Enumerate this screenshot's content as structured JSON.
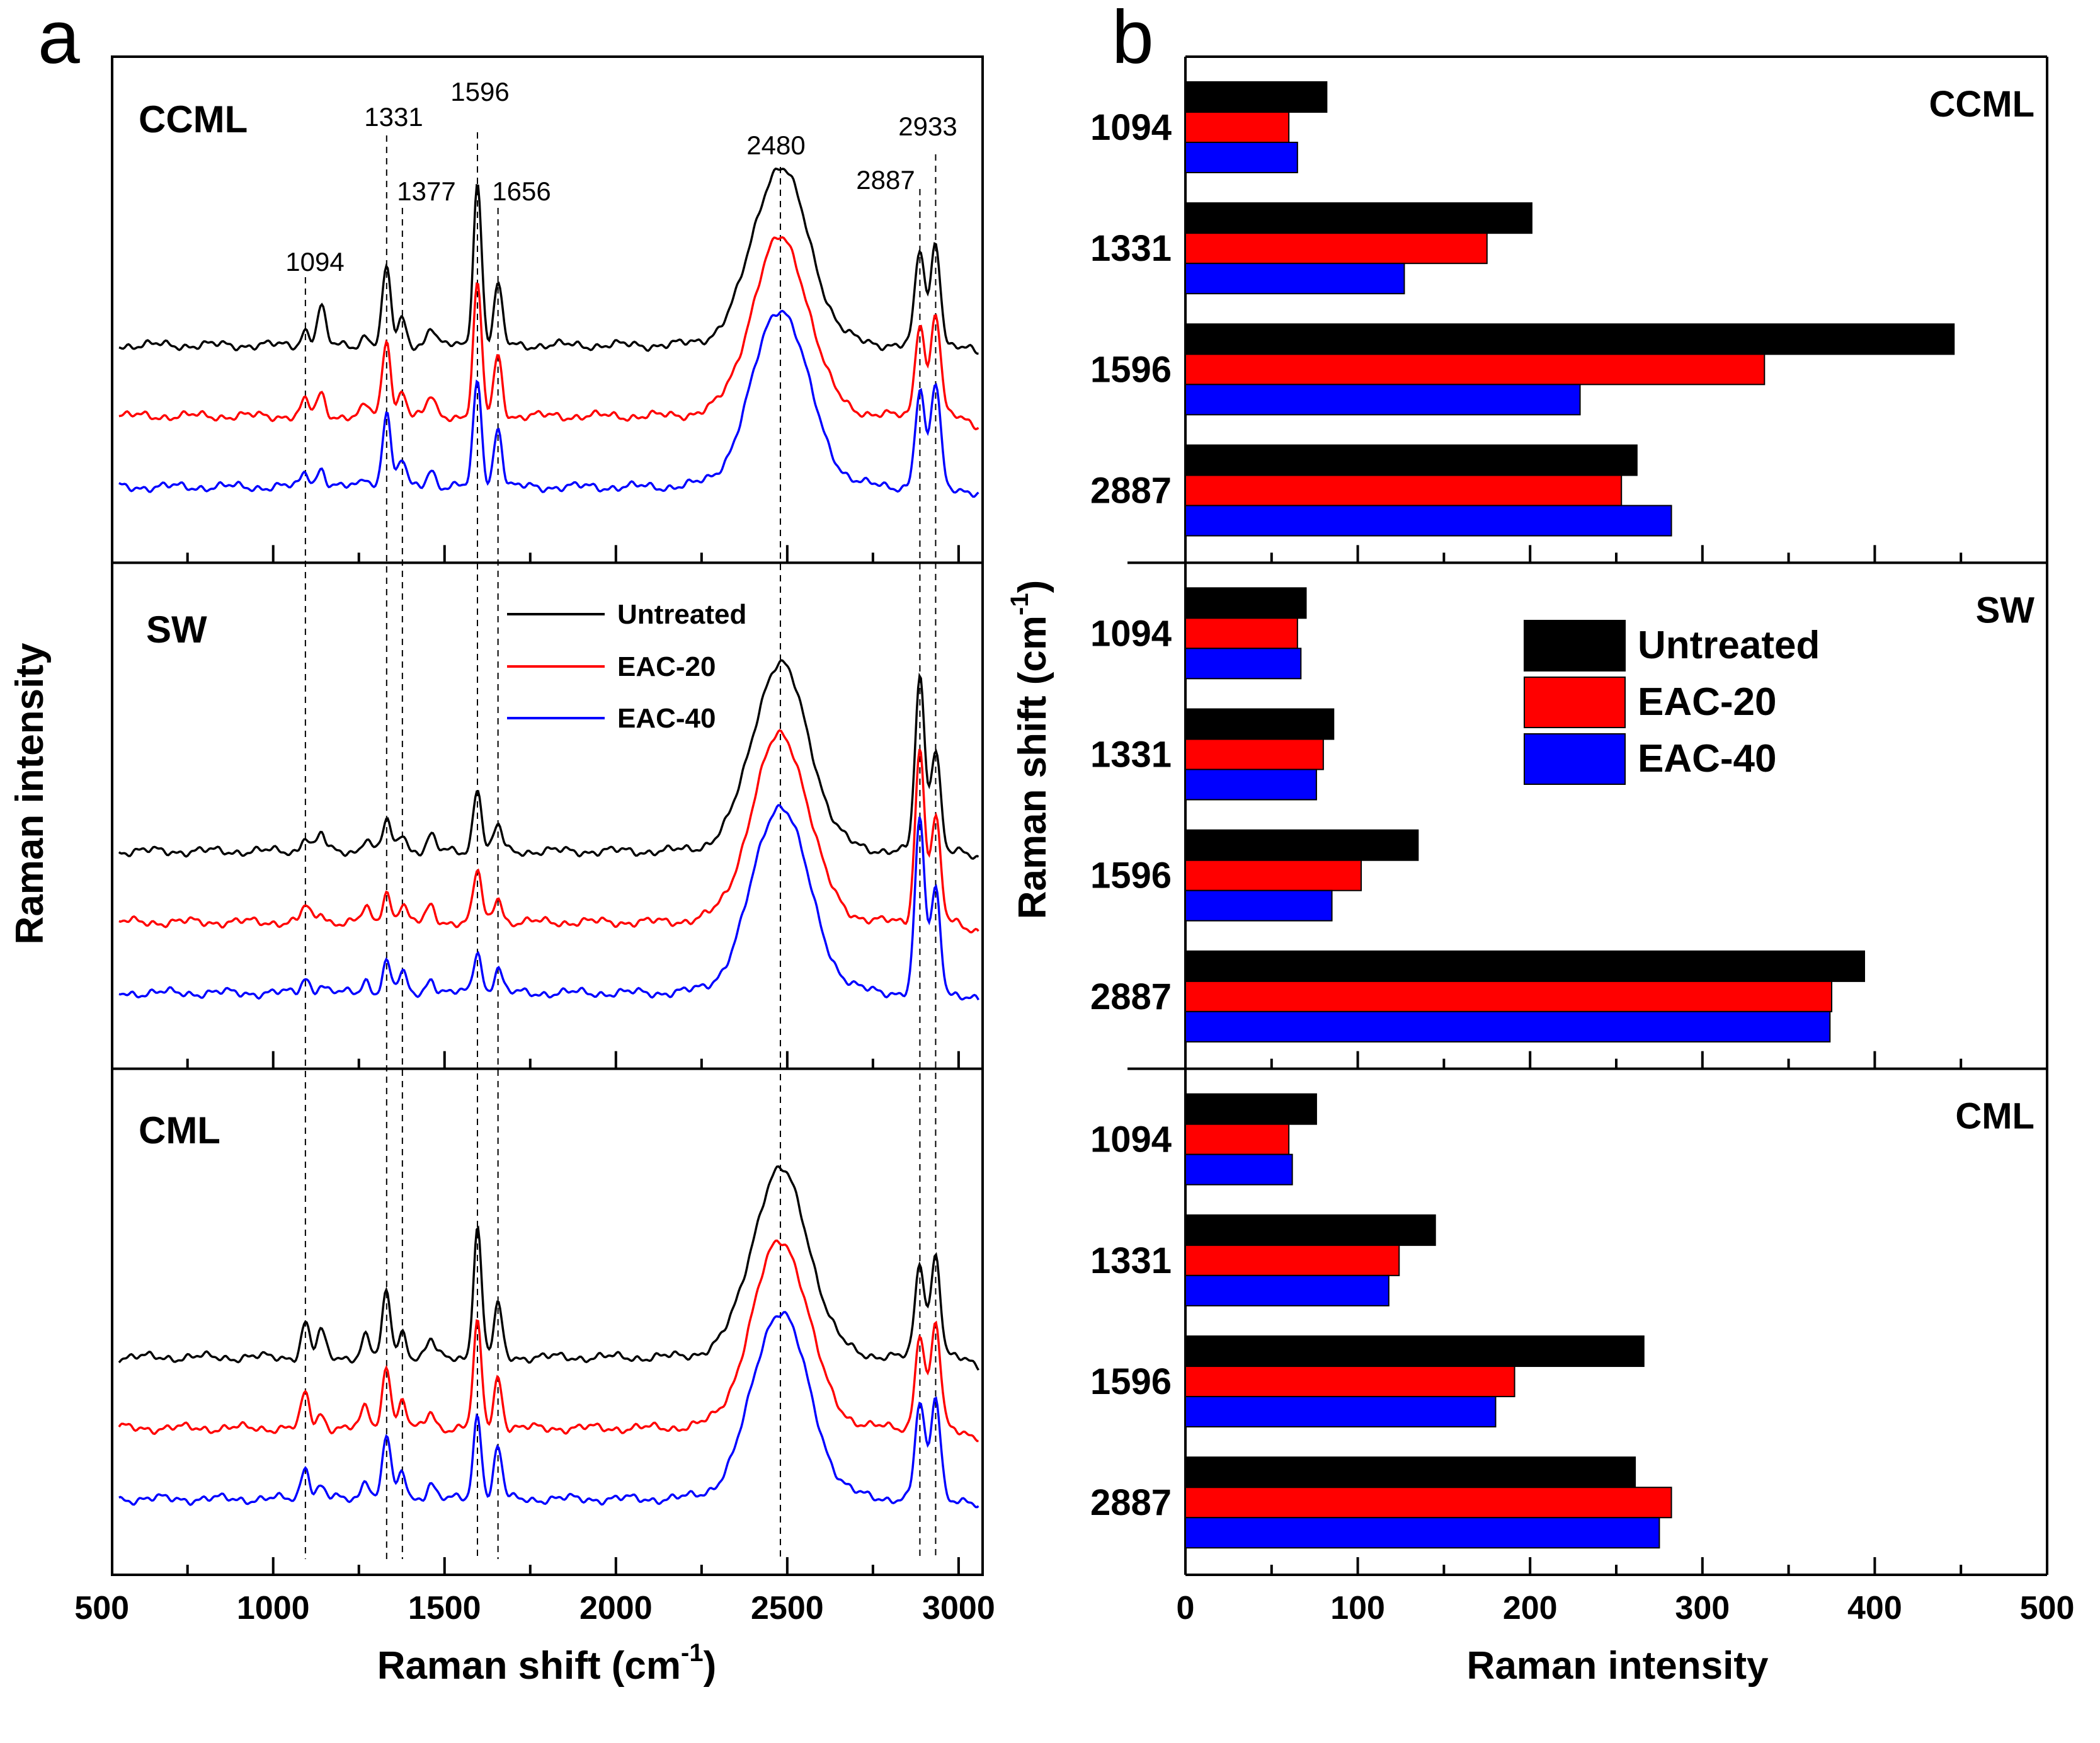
{
  "panel_a": {
    "label": "a",
    "xlabel": "Raman shift (cm-1)",
    "xlabel_main": "Raman shift (cm",
    "xlabel_sup": "-1",
    "xlabel_close": ")",
    "ylabel": "Raman intensity",
    "xlim": [
      530,
      3070
    ],
    "xticks": [
      500,
      1000,
      1500,
      2000,
      2500,
      3000
    ],
    "xtick_labels": [
      "500",
      "1000",
      "1500",
      "2000",
      "2500",
      "3000"
    ],
    "peak_lines": [
      1094,
      1331,
      1377,
      1596,
      1656,
      2480,
      2887,
      2933
    ],
    "peak_labels": [
      "1094",
      "1331",
      "1377",
      "1596",
      "1656",
      "2480",
      "2887",
      "2933"
    ],
    "subplots": [
      "CCML",
      "SW",
      "CML"
    ],
    "legend": [
      "Untreated",
      "EAC-20",
      "EAC-40"
    ],
    "colors": [
      "#000000",
      "#ff0000",
      "#0000ff"
    ]
  },
  "panel_b": {
    "label": "b",
    "xlabel": "Raman intensity",
    "ylabel": "Raman shift (cm-1)",
    "ylabel_main": "Raman shift (cm",
    "ylabel_sup": "-1",
    "ylabel_close": ")",
    "xlim": [
      0,
      500
    ],
    "xticks": [
      0,
      100,
      200,
      300,
      400,
      500
    ],
    "xtick_labels": [
      "0",
      "100",
      "200",
      "300",
      "400",
      "500"
    ],
    "legend": [
      "Untreated",
      "EAC-20",
      "EAC-40"
    ],
    "colors": [
      "#000000",
      "#ff0000",
      "#0000ff"
    ]
  },
  "chart_data": [
    {
      "type": "line",
      "title": "a",
      "xlabel": "Raman shift (cm-1)",
      "ylabel": "Raman intensity",
      "xlim": [
        530,
        3070
      ],
      "series_names": [
        "Untreated",
        "EAC-20",
        "EAC-40"
      ],
      "peak_positions": [
        1094,
        1331,
        1377,
        1596,
        1656,
        2480,
        2887,
        2933
      ],
      "subplots": [
        {
          "name": "CCML",
          "peaks": [
            [
              1094,
              0.18
            ],
            [
              1140,
              0.45
            ],
            [
              1270,
              0.12
            ],
            [
              1331,
              0.9
            ],
            [
              1377,
              0.3
            ],
            [
              1460,
              0.22
            ],
            [
              1596,
              1.9
            ],
            [
              1656,
              0.7
            ],
            [
              2420,
              0.55
            ],
            [
              2480,
              0.95
            ],
            [
              2540,
              0.55
            ],
            [
              2887,
              1.1
            ],
            [
              2933,
              1.2
            ]
          ]
        },
        {
          "name": "SW",
          "peaks": [
            [
              1094,
              0.18
            ],
            [
              1140,
              0.2
            ],
            [
              1270,
              0.15
            ],
            [
              1331,
              0.35
            ],
            [
              1377,
              0.22
            ],
            [
              1460,
              0.18
            ],
            [
              1596,
              0.75
            ],
            [
              1656,
              0.3
            ],
            [
              2420,
              0.6
            ],
            [
              2480,
              1.0
            ],
            [
              2540,
              0.6
            ],
            [
              2887,
              2.0
            ],
            [
              2933,
              1.2
            ]
          ]
        },
        {
          "name": "CML",
          "peaks": [
            [
              1094,
              0.4
            ],
            [
              1140,
              0.3
            ],
            [
              1270,
              0.25
            ],
            [
              1331,
              0.75
            ],
            [
              1377,
              0.3
            ],
            [
              1460,
              0.2
            ],
            [
              1596,
              1.5
            ],
            [
              1656,
              0.6
            ],
            [
              2420,
              0.6
            ],
            [
              2480,
              1.0
            ],
            [
              2540,
              0.6
            ],
            [
              2887,
              1.1
            ],
            [
              2933,
              1.2
            ]
          ]
        }
      ]
    },
    {
      "type": "bar",
      "orientation": "horizontal",
      "title": "b",
      "xlabel": "Raman intensity",
      "ylabel": "Raman shift (cm-1)",
      "xlim": [
        0,
        500
      ],
      "categories": [
        "1094",
        "1331",
        "1596",
        "2887"
      ],
      "groups": [
        {
          "name": "CCML",
          "series": [
            {
              "name": "Untreated",
              "values": [
                82,
                201,
                446,
                262
              ]
            },
            {
              "name": "EAC-20",
              "values": [
                60,
                175,
                336,
                253
              ]
            },
            {
              "name": "EAC-40",
              "values": [
                65,
                127,
                229,
                282
              ]
            }
          ]
        },
        {
          "name": "SW",
          "series": [
            {
              "name": "Untreated",
              "values": [
                70,
                86,
                135,
                394
              ]
            },
            {
              "name": "EAC-20",
              "values": [
                65,
                80,
                102,
                375
              ]
            },
            {
              "name": "EAC-40",
              "values": [
                67,
                76,
                85,
                374
              ]
            }
          ]
        },
        {
          "name": "CML",
          "series": [
            {
              "name": "Untreated",
              "values": [
                76,
                145,
                266,
                261
              ]
            },
            {
              "name": "EAC-20",
              "values": [
                60,
                124,
                191,
                282
              ]
            },
            {
              "name": "EAC-40",
              "values": [
                62,
                118,
                180,
                275
              ]
            }
          ]
        }
      ]
    }
  ]
}
